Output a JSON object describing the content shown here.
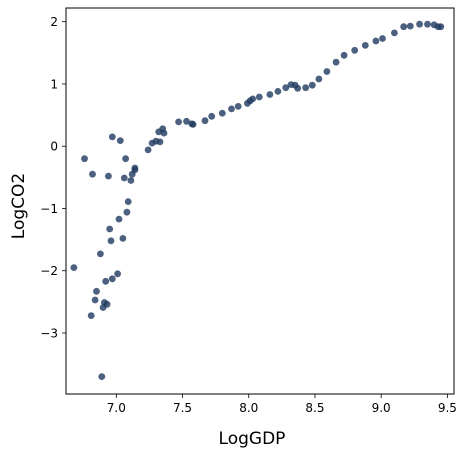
{
  "chart_data": {
    "type": "scatter",
    "title": "",
    "xlabel": "LogGDP",
    "ylabel": "LogCO2",
    "xlim": [
      6.62,
      9.55
    ],
    "ylim": [
      -3.98,
      2.22
    ],
    "xticks": [
      7.0,
      7.5,
      8.0,
      8.5,
      9.0,
      9.5
    ],
    "xtick_labels": [
      "7.0",
      "7.5",
      "8.0",
      "8.5",
      "9.0",
      "9.5"
    ],
    "yticks": [
      -3,
      -2,
      -1,
      0,
      1,
      2
    ],
    "ytick_labels": [
      "−3",
      "−2",
      "−1",
      "0",
      "1",
      "2"
    ],
    "grid": false,
    "legend": "none",
    "marker_color": "#1f3a5f",
    "x": [
      6.68,
      6.76,
      6.81,
      6.82,
      6.84,
      6.85,
      6.88,
      6.89,
      6.9,
      6.91,
      6.92,
      6.93,
      6.94,
      6.95,
      6.96,
      6.97,
      6.97,
      7.01,
      7.02,
      7.03,
      7.05,
      7.06,
      7.07,
      7.08,
      7.09,
      7.11,
      7.12,
      7.14,
      7.14,
      7.24,
      7.27,
      7.3,
      7.32,
      7.33,
      7.35,
      7.36,
      7.47,
      7.53,
      7.57,
      7.58,
      7.67,
      7.72,
      7.8,
      7.87,
      7.92,
      7.99,
      8.01,
      8.03,
      8.08,
      8.16,
      8.22,
      8.28,
      8.32,
      8.35,
      8.37,
      8.43,
      8.48,
      8.53,
      8.59,
      8.66,
      8.72,
      8.8,
      8.88,
      8.96,
      9.01,
      9.1,
      9.17,
      9.22,
      9.29,
      9.35,
      9.4,
      9.43,
      9.45
    ],
    "y": [
      -1.95,
      -0.2,
      -2.72,
      -0.45,
      -2.47,
      -2.33,
      -1.73,
      -3.7,
      -2.59,
      -2.51,
      -2.17,
      -2.54,
      -0.48,
      -1.33,
      -1.52,
      -2.13,
      0.15,
      -2.05,
      -1.17,
      0.09,
      -1.48,
      -0.51,
      -0.2,
      -1.06,
      -0.89,
      -0.55,
      -0.45,
      -0.35,
      -0.38,
      -0.06,
      0.05,
      0.08,
      0.23,
      0.07,
      0.28,
      0.21,
      0.39,
      0.4,
      0.36,
      0.35,
      0.41,
      0.48,
      0.53,
      0.6,
      0.64,
      0.69,
      0.73,
      0.76,
      0.79,
      0.83,
      0.88,
      0.94,
      0.99,
      0.98,
      0.93,
      0.94,
      0.98,
      1.08,
      1.2,
      1.35,
      1.46,
      1.54,
      1.62,
      1.69,
      1.73,
      1.82,
      1.92,
      1.93,
      1.96,
      1.96,
      1.95,
      1.92,
      1.92
    ]
  }
}
